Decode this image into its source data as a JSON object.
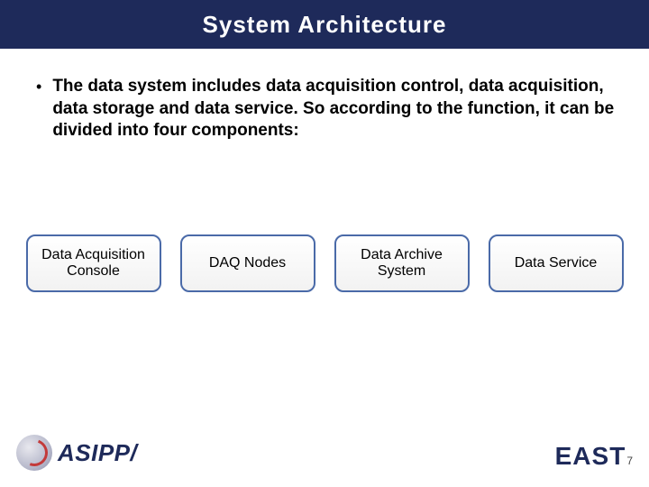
{
  "title": "System Architecture",
  "body": "The data system includes  data acquisition control, data acquisition, data storage and data service. So according to the function, it can be divided into  four components:",
  "components": {
    "box1": "Data Acquisition Console",
    "box2": "DAQ Nodes",
    "box3": "Data Archive System",
    "box4": "Data Service"
  },
  "footer": {
    "left": "ASIPP/",
    "right": "EAST",
    "page": "7"
  },
  "colors": {
    "header_bg": "#1e2a5a",
    "box_border": "#4a6aa8",
    "brand_text": "#1e2a5a"
  }
}
